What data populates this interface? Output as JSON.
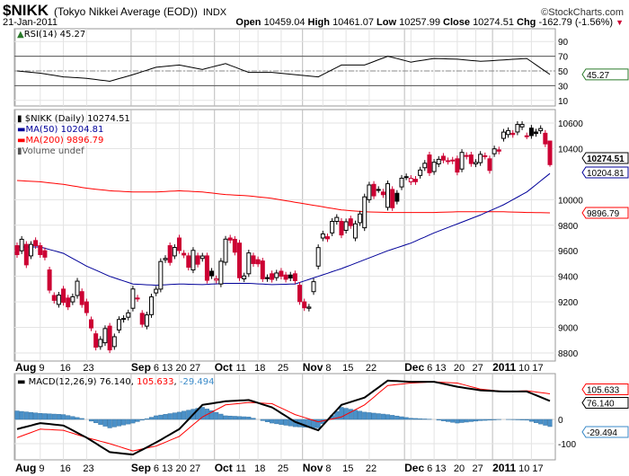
{
  "header": {
    "symbol": "$NIKK",
    "name": "(Tokyo Nikkei Average (EOD))",
    "exchange": "INDX",
    "watermark": "©StockCharts.com",
    "date": "21-Jan-2011",
    "open_label": "Open",
    "open": "10459.04",
    "high_label": "High",
    "high": "10461.07",
    "low_label": "Low",
    "low": "10257.99",
    "close_label": "Close",
    "close": "10274.51",
    "chg_label": "Chg",
    "chg": "-162.79 (-1.56%)",
    "chg_icon": "down-triangle-icon"
  },
  "chart_data": [
    {
      "type": "line",
      "panel": "rsi",
      "legend": "RSI(14) 45.27",
      "current_label": "45.27",
      "ylim": [
        0,
        100
      ],
      "ticks": [
        "90",
        "70",
        "50",
        "30",
        "10"
      ],
      "tick_values": [
        90,
        70,
        50,
        30,
        10
      ],
      "reference_lines": [
        70,
        50,
        30
      ],
      "sample_every_bars": 5,
      "values": [
        50,
        47,
        42,
        40,
        36,
        45,
        55,
        58,
        52,
        60,
        48,
        48,
        45,
        42,
        58,
        58,
        70,
        62,
        67,
        66,
        63,
        65,
        67,
        45.27
      ]
    },
    {
      "type": "candlestick",
      "panel": "price",
      "legend": {
        "price": "$NIKK (Daily) 10274.51",
        "ma50": "MA(50) 10204.81",
        "ma200": "MA(200) 9896.79",
        "volume": "Volume undef"
      },
      "ylim": [
        8750,
        10680
      ],
      "ticks": [
        "10600",
        "10400",
        "10000",
        "9800",
        "9600",
        "9400",
        "9200",
        "9000",
        "8800"
      ],
      "tick_values": [
        10600,
        10400,
        10000,
        9800,
        9600,
        9400,
        9200,
        9000,
        8800
      ],
      "current_labels": {
        "close": "10274.51",
        "ma50": "10204.81",
        "ma200": "9896.79"
      },
      "colors": {
        "up": "#000000",
        "down": "#cc0033",
        "ma50": "#000099",
        "ma200": "#ff0000"
      },
      "ohlc": [
        [
          9640,
          9665,
          9545,
          9570
        ],
        [
          9600,
          9715,
          9575,
          9690
        ],
        [
          9650,
          9675,
          9465,
          9490
        ],
        [
          9560,
          9675,
          9535,
          9650
        ],
        [
          9680,
          9705,
          9615,
          9640
        ],
        [
          9640,
          9665,
          9545,
          9570
        ],
        [
          9600,
          9625,
          9525,
          9550
        ],
        [
          9450,
          9475,
          9267,
          9292
        ],
        [
          9250,
          9275,
          9187,
          9212
        ],
        [
          9180,
          9278,
          9155,
          9253
        ],
        [
          9300,
          9325,
          9171,
          9196
        ],
        [
          9230,
          9255,
          9136,
          9161
        ],
        [
          9200,
          9265,
          9175,
          9240
        ],
        [
          9250,
          9387,
          9225,
          9362
        ],
        [
          9280,
          9305,
          9154,
          9179
        ],
        [
          9200,
          9225,
          9091,
          9116
        ],
        [
          9060,
          9085,
          8971,
          8996
        ],
        [
          8950,
          8975,
          8820,
          8845
        ],
        [
          8850,
          8931,
          8825,
          8906
        ],
        [
          8880,
          9016,
          8855,
          8991
        ],
        [
          9010,
          9035,
          8799,
          8824
        ],
        [
          8850,
          8952,
          8825,
          8927
        ],
        [
          8980,
          9087,
          8955,
          9062
        ],
        [
          9070,
          9095,
          9038,
          9063
        ],
        [
          9080,
          9139,
          9055,
          9114
        ],
        [
          9150,
          9326,
          9125,
          9301
        ],
        [
          9230,
          9255,
          9201,
          9226
        ],
        [
          9110,
          9135,
          9000,
          9025
        ],
        [
          9010,
          9123,
          8985,
          9098
        ],
        [
          9100,
          9264,
          9075,
          9239
        ],
        [
          9270,
          9324,
          9245,
          9299
        ],
        [
          9300,
          9541,
          9275,
          9516
        ],
        [
          9530,
          9565,
          9505,
          9540
        ],
        [
          9640,
          9665,
          9484,
          9509
        ],
        [
          9560,
          9651,
          9535,
          9626
        ],
        [
          9700,
          9725,
          9577,
          9602
        ],
        [
          9580,
          9605,
          9542,
          9567
        ],
        [
          9560,
          9585,
          9446,
          9471
        ],
        [
          9450,
          9628,
          9425,
          9603
        ],
        [
          9560,
          9585,
          9470,
          9495
        ],
        [
          9540,
          9584,
          9515,
          9559
        ],
        [
          9560,
          9585,
          9344,
          9369
        ],
        [
          9440,
          9465,
          9379,
          9404
        ],
        [
          9370,
          9406,
          9345,
          9381
        ],
        [
          9340,
          9543,
          9315,
          9518
        ],
        [
          9510,
          9716,
          9485,
          9691
        ],
        [
          9700,
          9725,
          9659,
          9684
        ],
        [
          9690,
          9715,
          9564,
          9589
        ],
        [
          9660,
          9685,
          9364,
          9389
        ],
        [
          9380,
          9428,
          9355,
          9403
        ],
        [
          9420,
          9608,
          9395,
          9583
        ],
        [
          9560,
          9585,
          9475,
          9500
        ],
        [
          9530,
          9555,
          9473,
          9498
        ],
        [
          9520,
          9545,
          9356,
          9381
        ],
        [
          9390,
          9415,
          9357,
          9382
        ],
        [
          9420,
          9445,
          9351,
          9376
        ],
        [
          9390,
          9451,
          9365,
          9426
        ],
        [
          9440,
          9465,
          9376,
          9401
        ],
        [
          9410,
          9435,
          9352,
          9377
        ],
        [
          9410,
          9435,
          9362,
          9387
        ],
        [
          9420,
          9445,
          9341,
          9366
        ],
        [
          9330,
          9355,
          9177,
          9202
        ],
        [
          9200,
          9225,
          9129,
          9154
        ],
        [
          9150,
          9184,
          9125,
          9159
        ],
        [
          9280,
          9383,
          9255,
          9358
        ],
        [
          9480,
          9650,
          9455,
          9625
        ],
        [
          9700,
          9757,
          9675,
          9732
        ],
        [
          9710,
          9735,
          9669,
          9694
        ],
        [
          9740,
          9855,
          9715,
          9830
        ],
        [
          9830,
          9886,
          9805,
          9861
        ],
        [
          9830,
          9855,
          9699,
          9724
        ],
        [
          9760,
          9852,
          9735,
          9827
        ],
        [
          9850,
          9875,
          9772,
          9797
        ],
        [
          9700,
          9836,
          9675,
          9811
        ],
        [
          9820,
          9913,
          9795,
          9888
        ],
        [
          9780,
          10047,
          9755,
          10022
        ],
        [
          10000,
          10140,
          9975,
          10115
        ],
        [
          10120,
          10145,
          10005,
          10030
        ],
        [
          10080,
          10105,
          10054,
          10079
        ],
        [
          10060,
          10085,
          10014,
          10039
        ],
        [
          9940,
          10150,
          9915,
          10125
        ],
        [
          10080,
          10105,
          9912,
          9937
        ],
        [
          10050,
          10075,
          9963,
          9988
        ],
        [
          10100,
          10193,
          10075,
          10168
        ],
        [
          10180,
          10205,
          10153,
          10178
        ],
        [
          10140,
          10192,
          10115,
          10167
        ],
        [
          10160,
          10185,
          10116,
          10141
        ],
        [
          10190,
          10257,
          10165,
          10232
        ],
        [
          10250,
          10310,
          10225,
          10285
        ],
        [
          10350,
          10375,
          10186,
          10211
        ],
        [
          10220,
          10318,
          10195,
          10293
        ],
        [
          10280,
          10341,
          10255,
          10316
        ],
        [
          10340,
          10365,
          10285,
          10310
        ],
        [
          10300,
          10330,
          10275,
          10305
        ],
        [
          10310,
          10335,
          10278,
          10303
        ],
        [
          10320,
          10345,
          10191,
          10216
        ],
        [
          10240,
          10395,
          10215,
          10370
        ],
        [
          10340,
          10371,
          10315,
          10346
        ],
        [
          10350,
          10375,
          10258,
          10283
        ],
        [
          10280,
          10317,
          10255,
          10292
        ],
        [
          10290,
          10380,
          10265,
          10355
        ],
        [
          10340,
          10369,
          10315,
          10344
        ],
        [
          10320,
          10345,
          10204,
          10229
        ],
        [
          10360,
          10423,
          10335,
          10398
        ],
        [
          10390,
          10415,
          10355,
          10380
        ],
        [
          10480,
          10554,
          10455,
          10529
        ],
        [
          10510,
          10566,
          10485,
          10541
        ],
        [
          10520,
          10545,
          10485,
          10510
        ],
        [
          10530,
          10614,
          10505,
          10589
        ],
        [
          10570,
          10614,
          10545,
          10589
        ],
        [
          10500,
          10525,
          10474,
          10499
        ],
        [
          10560,
          10585,
          10477,
          10502
        ],
        [
          10530,
          10555,
          10493,
          10518
        ],
        [
          10540,
          10582,
          10515,
          10557
        ],
        [
          10520,
          10545,
          10412,
          10437
        ],
        [
          10459.04,
          10461.07,
          10257.99,
          10274.51
        ]
      ],
      "sample_every_bars": 5,
      "ma50": [
        9630,
        9630,
        9580,
        9480,
        9400,
        9340,
        9330,
        9340,
        9335,
        9345,
        9345,
        9335,
        9340,
        9400,
        9460,
        9530,
        9600,
        9660,
        9740,
        9810,
        9880,
        9960,
        10060,
        10204.81
      ],
      "ma200": [
        10150,
        10140,
        10120,
        10090,
        10070,
        10060,
        10060,
        10070,
        10060,
        10040,
        10030,
        10010,
        9980,
        9950,
        9920,
        9905,
        9900,
        9900,
        9900,
        9905,
        9905,
        9905,
        9900,
        9896.79
      ]
    },
    {
      "type": "line+histogram",
      "panel": "macd",
      "legend": {
        "macd": "MACD(12,26,9) 76.140",
        "signal": "105.633",
        "hist": "-29.494"
      },
      "ylim": [
        -170,
        170
      ],
      "ticks": [
        "0",
        "-100"
      ],
      "tick_values": [
        0,
        -100
      ],
      "current_labels": {
        "signal": "105.633",
        "macd": "76.140",
        "hist": "-29.494"
      },
      "colors": {
        "macd": "#000000",
        "signal": "#ff0000",
        "hist": "#4a90c8"
      },
      "sample_every_bars": 5,
      "macd": [
        -40,
        -15,
        -25,
        -75,
        -135,
        -145,
        -95,
        -40,
        60,
        75,
        80,
        50,
        -10,
        -45,
        60,
        90,
        160,
        155,
        155,
        135,
        120,
        115,
        115,
        76.14
      ],
      "signal": [
        -75,
        -40,
        -45,
        -75,
        -100,
        -130,
        -110,
        -70,
        10,
        60,
        70,
        65,
        20,
        -10,
        10,
        60,
        140,
        150,
        155,
        150,
        125,
        115,
        118,
        105.633
      ],
      "hist": [
        35,
        25,
        20,
        0,
        -35,
        -15,
        15,
        30,
        50,
        15,
        10,
        -15,
        -30,
        -35,
        50,
        30,
        20,
        5,
        0,
        -15,
        -5,
        0,
        -3,
        -29.494
      ]
    }
  ],
  "x_axis": {
    "labels": [
      [
        "Aug",
        true,
        0
      ],
      [
        "9",
        false,
        5
      ],
      [
        "16",
        false,
        10
      ],
      [
        "23",
        false,
        15
      ],
      [
        "Sep",
        true,
        25
      ],
      [
        "6",
        false,
        25
      ],
      [
        "13",
        false,
        30
      ],
      [
        "20",
        false,
        35
      ],
      [
        "27",
        false,
        38
      ],
      [
        "Oct",
        true,
        43
      ],
      [
        "11",
        false,
        48
      ],
      [
        "18",
        false,
        52
      ],
      [
        "25",
        false,
        57
      ],
      [
        "Nov",
        true,
        62
      ],
      [
        "8",
        false,
        66
      ],
      [
        "15",
        false,
        71
      ],
      [
        "22",
        false,
        76
      ],
      [
        "Dec",
        true,
        84
      ],
      [
        "6",
        false,
        85
      ],
      [
        "13",
        false,
        90
      ],
      [
        "20",
        false,
        95
      ],
      [
        "27",
        false,
        99
      ],
      [
        "2011",
        true,
        103
      ],
      [
        "10",
        false,
        107
      ],
      [
        "17",
        false,
        111
      ]
    ]
  }
}
